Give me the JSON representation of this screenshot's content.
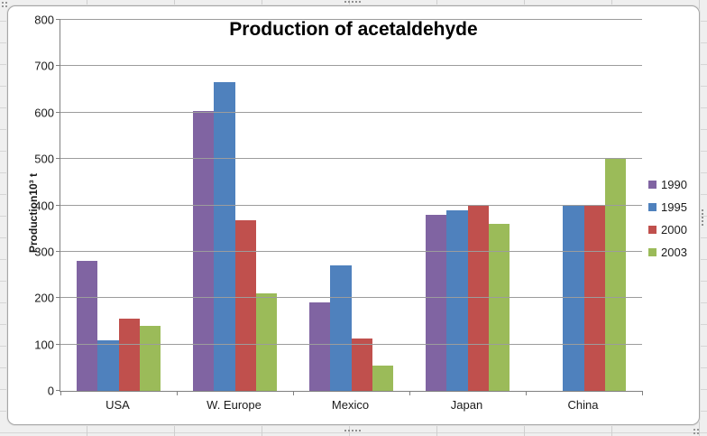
{
  "chart_data": {
    "type": "bar",
    "title": "Production of acetaldehyde",
    "ylabel": "Production10³ t",
    "categories": [
      "USA",
      "W. Europe",
      "Mexico",
      "Japan",
      "China"
    ],
    "series": [
      {
        "name": "1990",
        "color": "#8064A2",
        "values": [
          280,
          603,
          190,
          380,
          null
        ]
      },
      {
        "name": "1995",
        "color": "#4F81BD",
        "values": [
          110,
          665,
          270,
          390,
          400
        ]
      },
      {
        "name": "2000",
        "color": "#C0504D",
        "values": [
          155,
          368,
          112,
          400,
          400
        ]
      },
      {
        "name": "2003",
        "color": "#9BBB59",
        "values": [
          140,
          210,
          55,
          360,
          500
        ]
      }
    ],
    "ylim": [
      0,
      800
    ],
    "yticks": [
      0,
      100,
      200,
      300,
      400,
      500,
      600,
      700,
      800
    ],
    "grid": true,
    "legend_position": "right",
    "legend": [
      "1990",
      "1995",
      "2000",
      "2003"
    ]
  },
  "colors": {
    "axis": "#808080",
    "gridline": "#9C9C9C",
    "chart_border": "#A6A6A6",
    "plot_background": "#FFFFFF",
    "sheet_background": "#EDEDED"
  }
}
